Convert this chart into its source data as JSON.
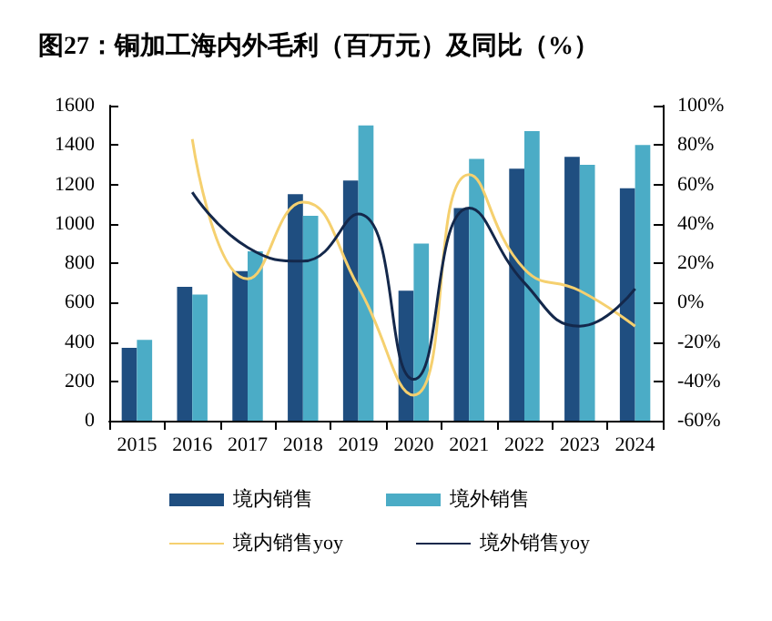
{
  "chart_data": {
    "type": "bar",
    "title": "图27：铜加工海内外毛利（百万元）及同比（%）",
    "categories": [
      "2015",
      "2016",
      "2017",
      "2018",
      "2019",
      "2020",
      "2021",
      "2022",
      "2023",
      "2024"
    ],
    "series": [
      {
        "name": "境内销售",
        "color": "#1f4e80",
        "values": [
          370,
          680,
          760,
          1150,
          1220,
          660,
          1080,
          1280,
          1340,
          1180
        ]
      },
      {
        "name": "境外销售",
        "color": "#4bacc6",
        "values": [
          410,
          640,
          860,
          1040,
          1500,
          900,
          1330,
          1470,
          1300,
          1400
        ]
      },
      {
        "name": "境内销售yoy",
        "type": "line",
        "axis": "y2",
        "color": "#f5d06f",
        "values": [
          null,
          83,
          12,
          51,
          8,
          -47,
          65,
          17,
          6,
          -12
        ]
      },
      {
        "name": "境外销售yoy",
        "type": "line",
        "axis": "y2",
        "color": "#14284b",
        "values": [
          null,
          56,
          28,
          21,
          45,
          -39,
          48,
          10,
          -12,
          7
        ]
      }
    ],
    "ylim": [
      0,
      1600
    ],
    "yticks": [
      0,
      200,
      400,
      600,
      800,
      1000,
      1200,
      1400,
      1600
    ],
    "y2lim": [
      -60,
      100
    ],
    "y2ticks": [
      {
        "value": -60,
        "label": "-60%"
      },
      {
        "value": -40,
        "label": "-40%"
      },
      {
        "value": -20,
        "label": "-20%"
      },
      {
        "value": 0,
        "label": "0%"
      },
      {
        "value": 20,
        "label": "20%"
      },
      {
        "value": 40,
        "label": "40%"
      },
      {
        "value": 60,
        "label": "60%"
      },
      {
        "value": 80,
        "label": "80%"
      },
      {
        "value": 100,
        "label": "100%"
      }
    ],
    "legend": "bottom",
    "grid": false,
    "marker": "none"
  }
}
